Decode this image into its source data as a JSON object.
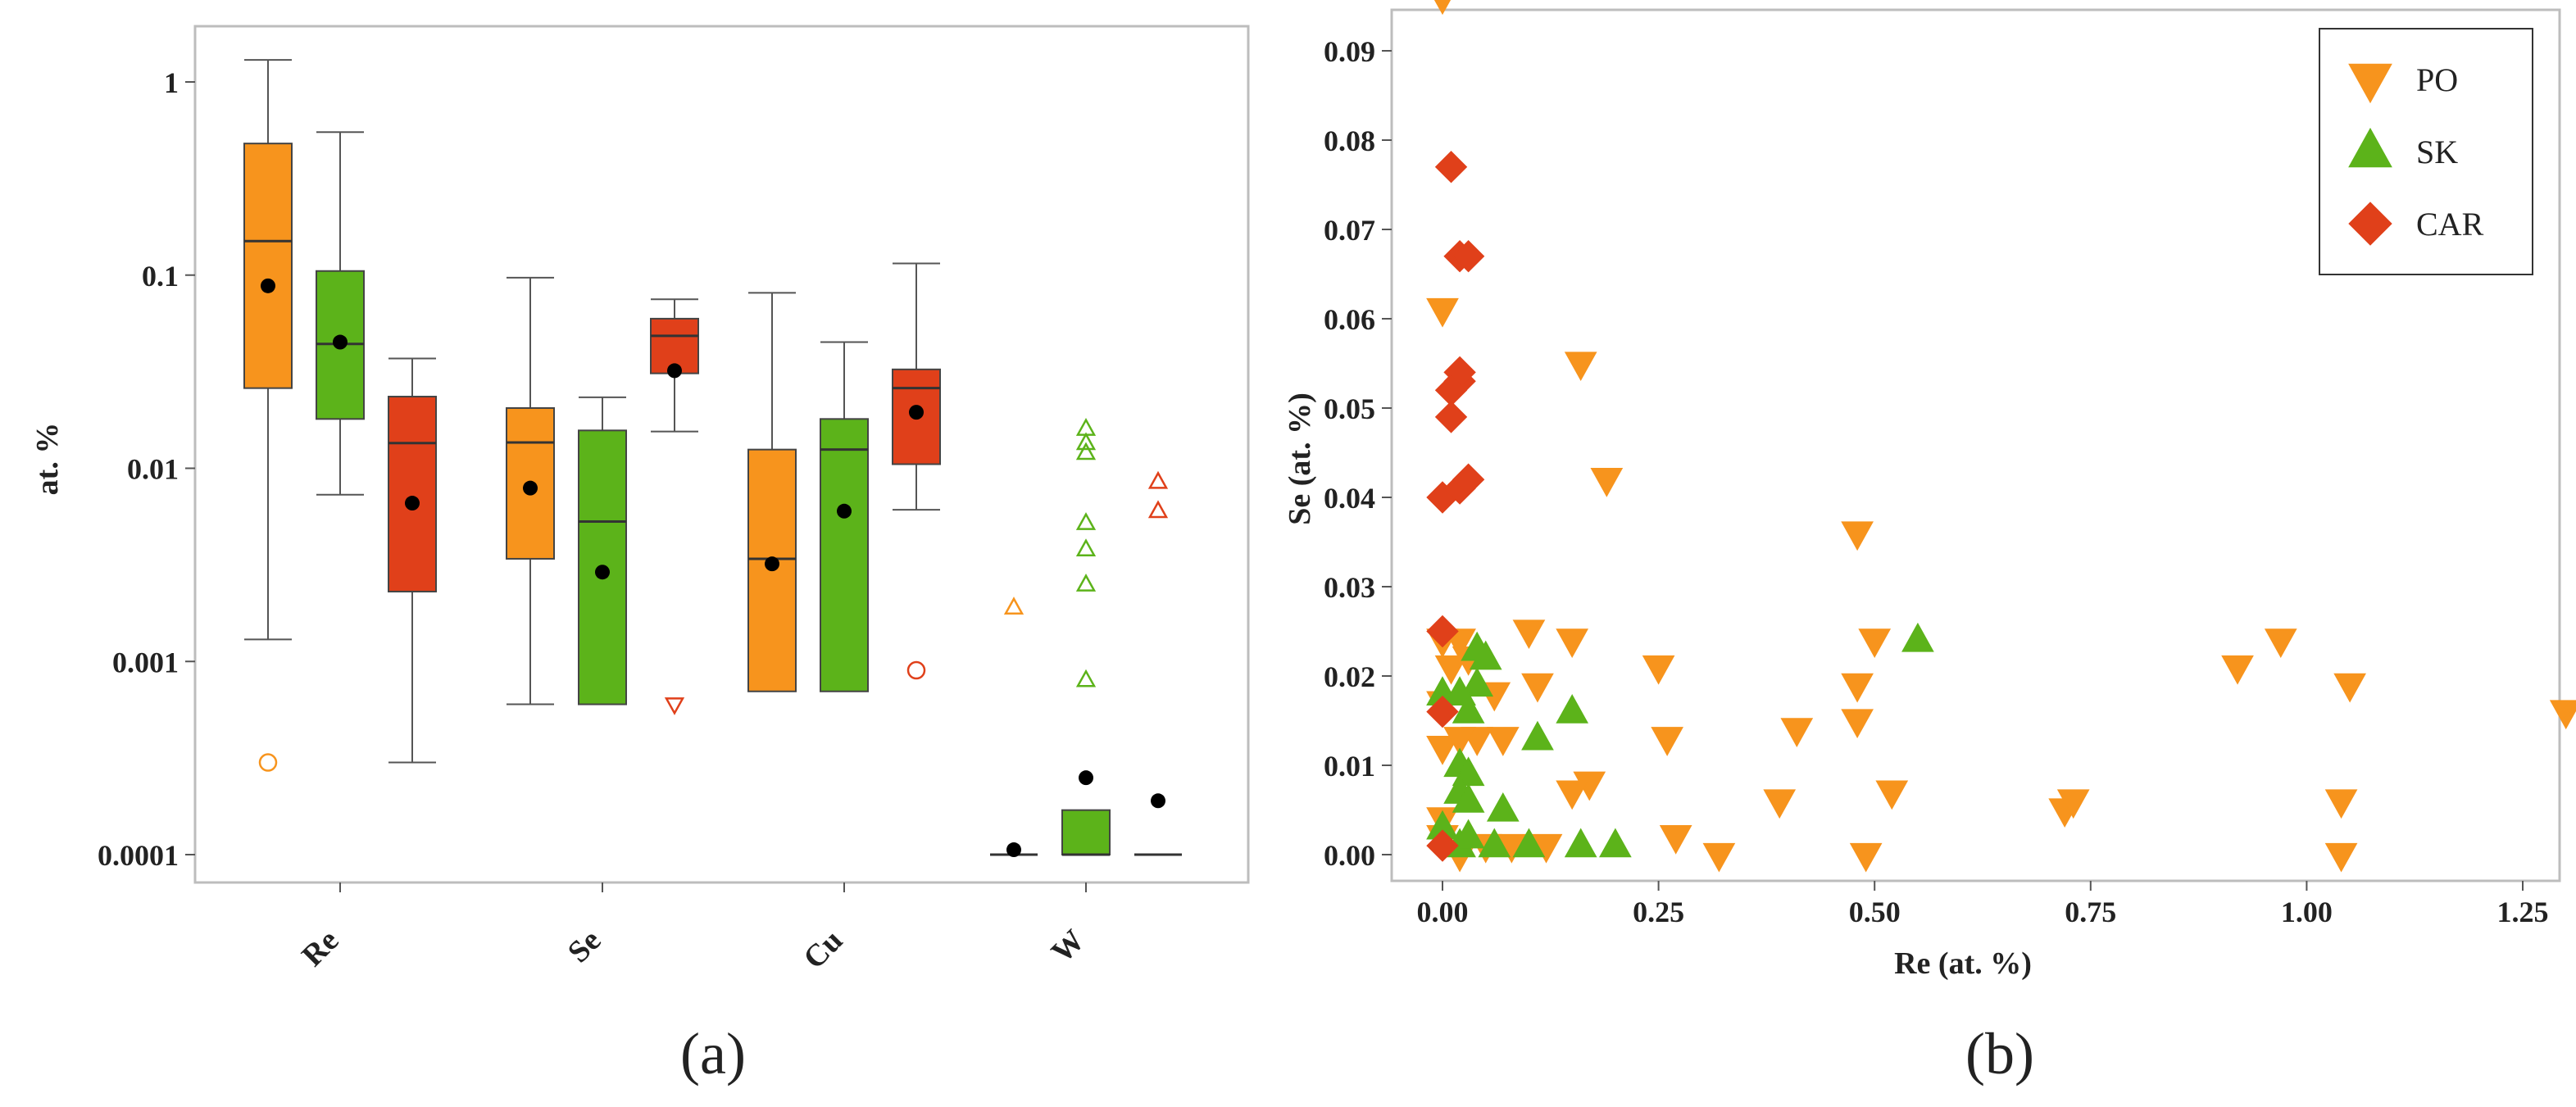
{
  "colors": {
    "PO": "#f7941d",
    "SK": "#5cb31a",
    "CAR": "#e0401a"
  },
  "chart_data": [
    {
      "type": "box",
      "panel_label": "(a)",
      "ylabel": "at. %",
      "yscale": "log",
      "ylim": [
        8e-05,
        2
      ],
      "yticks": [
        1,
        0.1,
        0.01,
        0.001,
        0.0001
      ],
      "ytick_labels": [
        "1",
        "0.1",
        "0.01",
        "0.001",
        "0.0001"
      ],
      "categories": [
        "Re",
        "Se",
        "Cu",
        "W"
      ],
      "series_order": [
        "PO",
        "SK",
        "CAR"
      ],
      "boxes": [
        {
          "category": "Re",
          "group": "PO",
          "whisker_low": 0.0013,
          "q1": 0.026,
          "median": 0.15,
          "q3": 0.48,
          "whisker_high": 1.3,
          "mean": 0.088,
          "outliers": [
            {
              "value": 0.0003,
              "marker": "circle"
            }
          ]
        },
        {
          "category": "Re",
          "group": "SK",
          "whisker_low": 0.0073,
          "q1": 0.018,
          "median": 0.044,
          "q3": 0.105,
          "whisker_high": 0.55,
          "mean": 0.045,
          "outliers": []
        },
        {
          "category": "Re",
          "group": "CAR",
          "whisker_low": 0.0003,
          "q1": 0.0023,
          "median": 0.0135,
          "q3": 0.0235,
          "whisker_high": 0.037,
          "mean": 0.0066,
          "outliers": []
        },
        {
          "category": "Se",
          "group": "PO",
          "whisker_low": 0.0006,
          "q1": 0.0034,
          "median": 0.0136,
          "q3": 0.0205,
          "whisker_high": 0.097,
          "mean": 0.0079,
          "outliers": []
        },
        {
          "category": "Se",
          "group": "SK",
          "whisker_low": 0.0006,
          "q1": 0.0006,
          "median": 0.0053,
          "q3": 0.0157,
          "whisker_high": 0.0233,
          "mean": 0.0029,
          "outliers": []
        },
        {
          "category": "Se",
          "group": "CAR",
          "whisker_low": 0.0155,
          "q1": 0.031,
          "median": 0.0485,
          "q3": 0.0595,
          "whisker_high": 0.075,
          "mean": 0.032,
          "outliers": [
            {
              "value": 0.0006,
              "marker": "triangle-down"
            }
          ]
        },
        {
          "category": "Cu",
          "group": "PO",
          "whisker_low": 0.0007,
          "q1": 0.0007,
          "median": 0.0034,
          "q3": 0.0125,
          "whisker_high": 0.081,
          "mean": 0.0032,
          "outliers": []
        },
        {
          "category": "Cu",
          "group": "SK",
          "whisker_low": 0.0007,
          "q1": 0.0007,
          "median": 0.0125,
          "q3": 0.018,
          "whisker_high": 0.045,
          "mean": 0.006,
          "outliers": []
        },
        {
          "category": "Cu",
          "group": "CAR",
          "whisker_low": 0.0061,
          "q1": 0.0105,
          "median": 0.026,
          "q3": 0.0325,
          "whisker_high": 0.115,
          "mean": 0.0195,
          "outliers": [
            {
              "value": 0.0009,
              "marker": "circle"
            }
          ]
        },
        {
          "category": "W",
          "group": "PO",
          "whisker_low": 0.0001,
          "q1": 0.0001,
          "median": 0.0001,
          "q3": 0.0001,
          "whisker_high": 0.0001,
          "mean": 0.000106,
          "outliers": [
            {
              "value": 0.0019,
              "marker": "triangle-up"
            }
          ]
        },
        {
          "category": "W",
          "group": "SK",
          "whisker_low": 0.0001,
          "q1": 0.0001,
          "median": 0.0001,
          "q3": 0.00017,
          "whisker_high": 0.00017,
          "mean": 0.00025,
          "outliers": [
            {
              "value": 0.0008,
              "marker": "triangle-up"
            },
            {
              "value": 0.0025,
              "marker": "triangle-up"
            },
            {
              "value": 0.0038,
              "marker": "triangle-up"
            },
            {
              "value": 0.0052,
              "marker": "triangle-up"
            },
            {
              "value": 0.012,
              "marker": "triangle-up"
            },
            {
              "value": 0.0135,
              "marker": "triangle-up"
            },
            {
              "value": 0.016,
              "marker": "triangle-up"
            }
          ]
        },
        {
          "category": "W",
          "group": "CAR",
          "whisker_low": 0.0001,
          "q1": 0.0001,
          "median": 0.0001,
          "q3": 0.0001,
          "whisker_high": 0.0001,
          "mean": 0.00019,
          "outliers": [
            {
              "value": 0.006,
              "marker": "triangle-up"
            },
            {
              "value": 0.0085,
              "marker": "triangle-up"
            }
          ]
        }
      ]
    },
    {
      "type": "scatter",
      "panel_label": "(b)",
      "xlabel": "Re (at. %)",
      "ylabel": "Se (at. %)",
      "xlim": [
        -0.04,
        1.33
      ],
      "ylim": [
        -0.004,
        0.098
      ],
      "xticks": [
        0.0,
        0.25,
        0.5,
        0.75,
        1.0,
        1.25
      ],
      "xtick_labels": [
        "0.00",
        "0.25",
        "0.50",
        "0.75",
        "1.00",
        "1.25"
      ],
      "yticks": [
        0.0,
        0.01,
        0.02,
        0.03,
        0.04,
        0.05,
        0.06,
        0.07,
        0.08,
        0.09
      ],
      "ytick_labels": [
        "0.00",
        "0.01",
        "0.02",
        "0.03",
        "0.04",
        "0.05",
        "0.06",
        "0.07",
        "0.08",
        "0.09"
      ],
      "legend": {
        "position": "top-right",
        "entries": [
          "PO",
          "SK",
          "CAR"
        ]
      },
      "series": [
        {
          "name": "PO",
          "marker": "triangle-down",
          "points": [
            [
              0.0,
              0.096
            ],
            [
              0.0,
              0.061
            ],
            [
              0.16,
              0.055
            ],
            [
              0.19,
              0.042
            ],
            [
              0.48,
              0.036
            ],
            [
              0.0,
              0.024
            ],
            [
              0.02,
              0.024
            ],
            [
              0.1,
              0.025
            ],
            [
              0.15,
              0.024
            ],
            [
              0.25,
              0.021
            ],
            [
              0.5,
              0.024
            ],
            [
              0.92,
              0.021
            ],
            [
              0.97,
              0.024
            ],
            [
              1.05,
              0.019
            ],
            [
              1.3,
              0.016
            ],
            [
              0.0,
              0.017
            ],
            [
              0.01,
              0.021
            ],
            [
              0.03,
              0.022
            ],
            [
              0.04,
              0.013
            ],
            [
              0.06,
              0.018
            ],
            [
              0.07,
              0.013
            ],
            [
              0.11,
              0.019
            ],
            [
              0.17,
              0.008
            ],
            [
              0.15,
              0.007
            ],
            [
              0.26,
              0.013
            ],
            [
              0.48,
              0.019
            ],
            [
              0.48,
              0.015
            ],
            [
              0.0,
              0.012
            ],
            [
              0.02,
              0.013
            ],
            [
              0.0,
              0.004
            ],
            [
              0.0,
              0.002
            ],
            [
              0.02,
              0.0
            ],
            [
              0.05,
              0.001
            ],
            [
              0.08,
              0.001
            ],
            [
              0.12,
              0.001
            ],
            [
              0.27,
              0.002
            ],
            [
              0.32,
              0.0
            ],
            [
              0.39,
              0.006
            ],
            [
              0.41,
              0.014
            ],
            [
              0.49,
              0.0
            ],
            [
              0.52,
              0.007
            ],
            [
              0.72,
              0.005
            ],
            [
              0.73,
              0.006
            ],
            [
              1.04,
              0.006
            ],
            [
              1.04,
              0.0
            ]
          ]
        },
        {
          "name": "SK",
          "marker": "triangle-up",
          "points": [
            [
              0.55,
              0.024
            ],
            [
              0.04,
              0.023
            ],
            [
              0.05,
              0.022
            ],
            [
              0.04,
              0.019
            ],
            [
              0.03,
              0.016
            ],
            [
              0.0,
              0.018
            ],
            [
              0.02,
              0.018
            ],
            [
              0.15,
              0.016
            ],
            [
              0.11,
              0.013
            ],
            [
              0.02,
              0.01
            ],
            [
              0.03,
              0.009
            ],
            [
              0.02,
              0.007
            ],
            [
              0.03,
              0.006
            ],
            [
              0.07,
              0.005
            ],
            [
              0.02,
              0.001
            ],
            [
              0.03,
              0.002
            ],
            [
              0.06,
              0.001
            ],
            [
              0.1,
              0.001
            ],
            [
              0.16,
              0.001
            ],
            [
              0.2,
              0.001
            ],
            [
              0.0,
              0.003
            ]
          ]
        },
        {
          "name": "CAR",
          "marker": "diamond",
          "points": [
            [
              0.01,
              0.077
            ],
            [
              0.02,
              0.067
            ],
            [
              0.03,
              0.067
            ],
            [
              0.02,
              0.053
            ],
            [
              0.02,
              0.054
            ],
            [
              0.01,
              0.052
            ],
            [
              0.01,
              0.049
            ],
            [
              0.0,
              0.04
            ],
            [
              0.02,
              0.041
            ],
            [
              0.03,
              0.042
            ],
            [
              0.0,
              0.025
            ],
            [
              0.0,
              0.016
            ],
            [
              0.0,
              0.001
            ]
          ]
        }
      ]
    }
  ]
}
